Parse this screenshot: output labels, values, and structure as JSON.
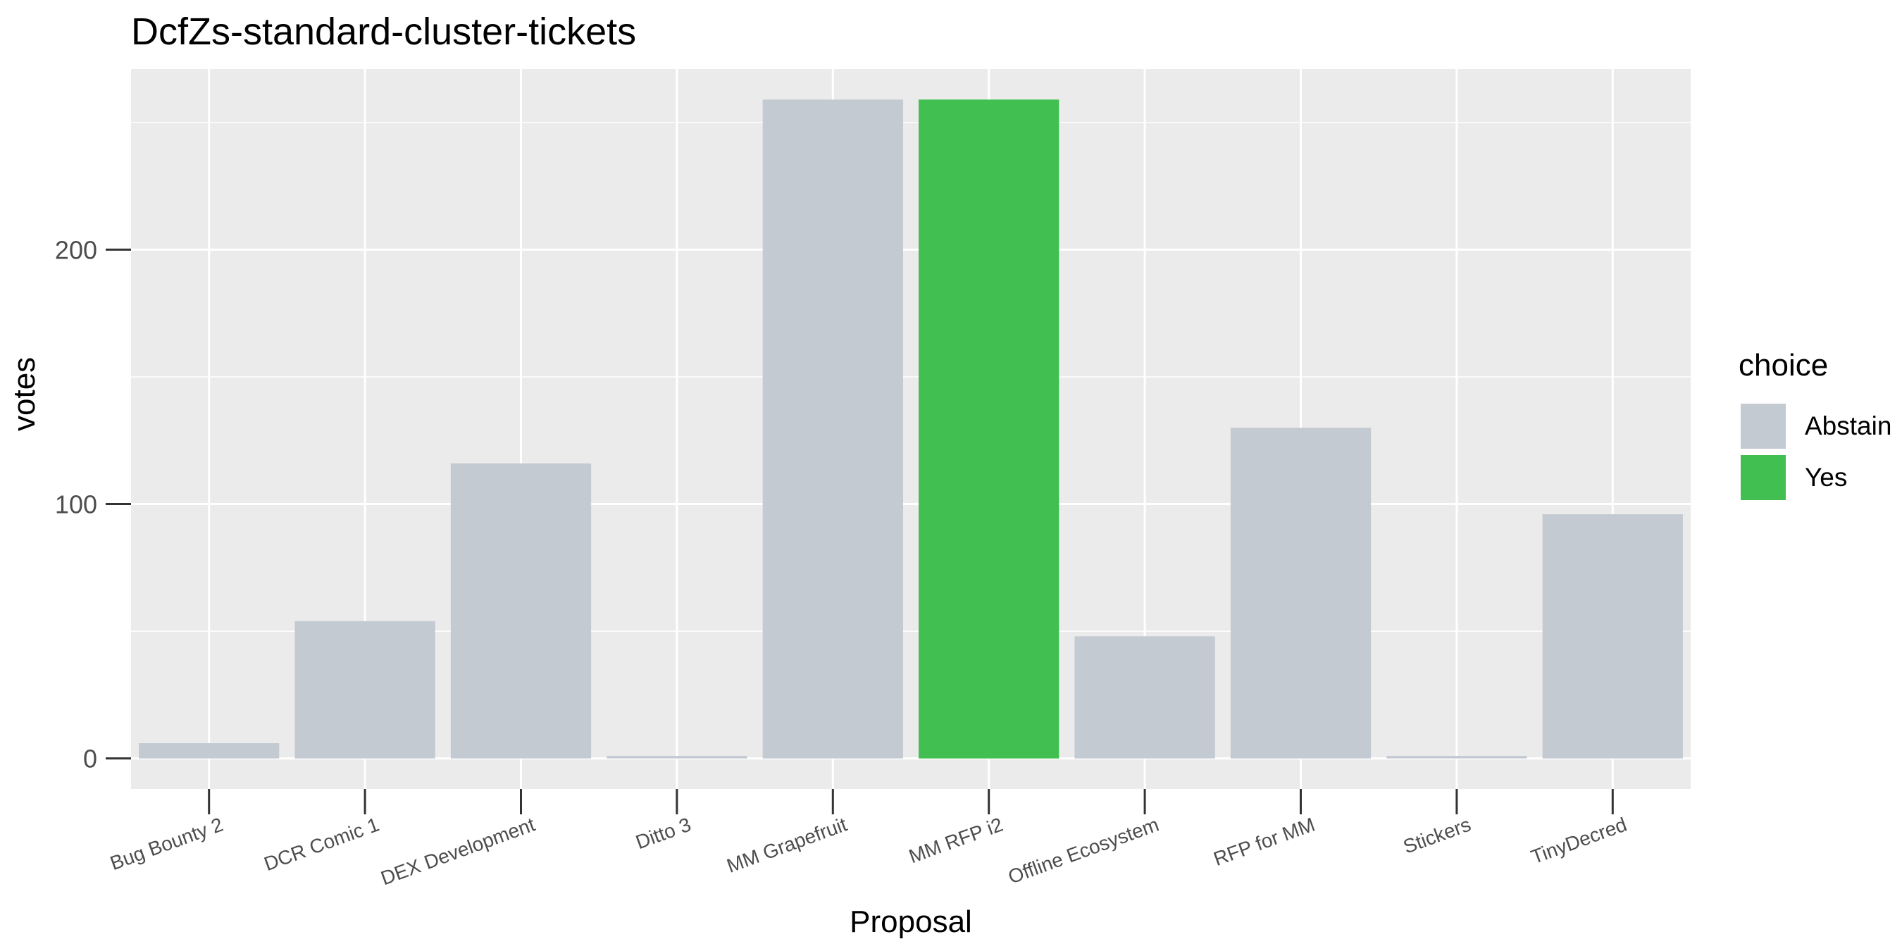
{
  "chart_data": {
    "type": "bar",
    "title": "DcfZs-standard-cluster-tickets",
    "xlabel": "Proposal",
    "ylabel": "votes",
    "categories": [
      "Bug Bounty 2",
      "DCR Comic 1",
      "DEX Development",
      "Ditto 3",
      "MM Grapefruit",
      "MM RFP i2",
      "Offline Ecosystem",
      "RFP for MM",
      "Stickers",
      "TinyDecred"
    ],
    "values": [
      6,
      54,
      116,
      1,
      259,
      259,
      48,
      130,
      1,
      96
    ],
    "fill_choice": [
      "Abstain",
      "Abstain",
      "Abstain",
      "Abstain",
      "Abstain",
      "Yes",
      "Abstain",
      "Abstain",
      "Abstain",
      "Abstain"
    ],
    "ylim": [
      -12,
      271
    ],
    "yticks": [
      0,
      100,
      200
    ],
    "grid": true,
    "legend": {
      "title": "choice",
      "placement": "right",
      "entries": [
        {
          "label": "Abstain",
          "color": "#C4CAD2"
        },
        {
          "label": "Yes",
          "color": "#41BF50"
        }
      ]
    }
  }
}
